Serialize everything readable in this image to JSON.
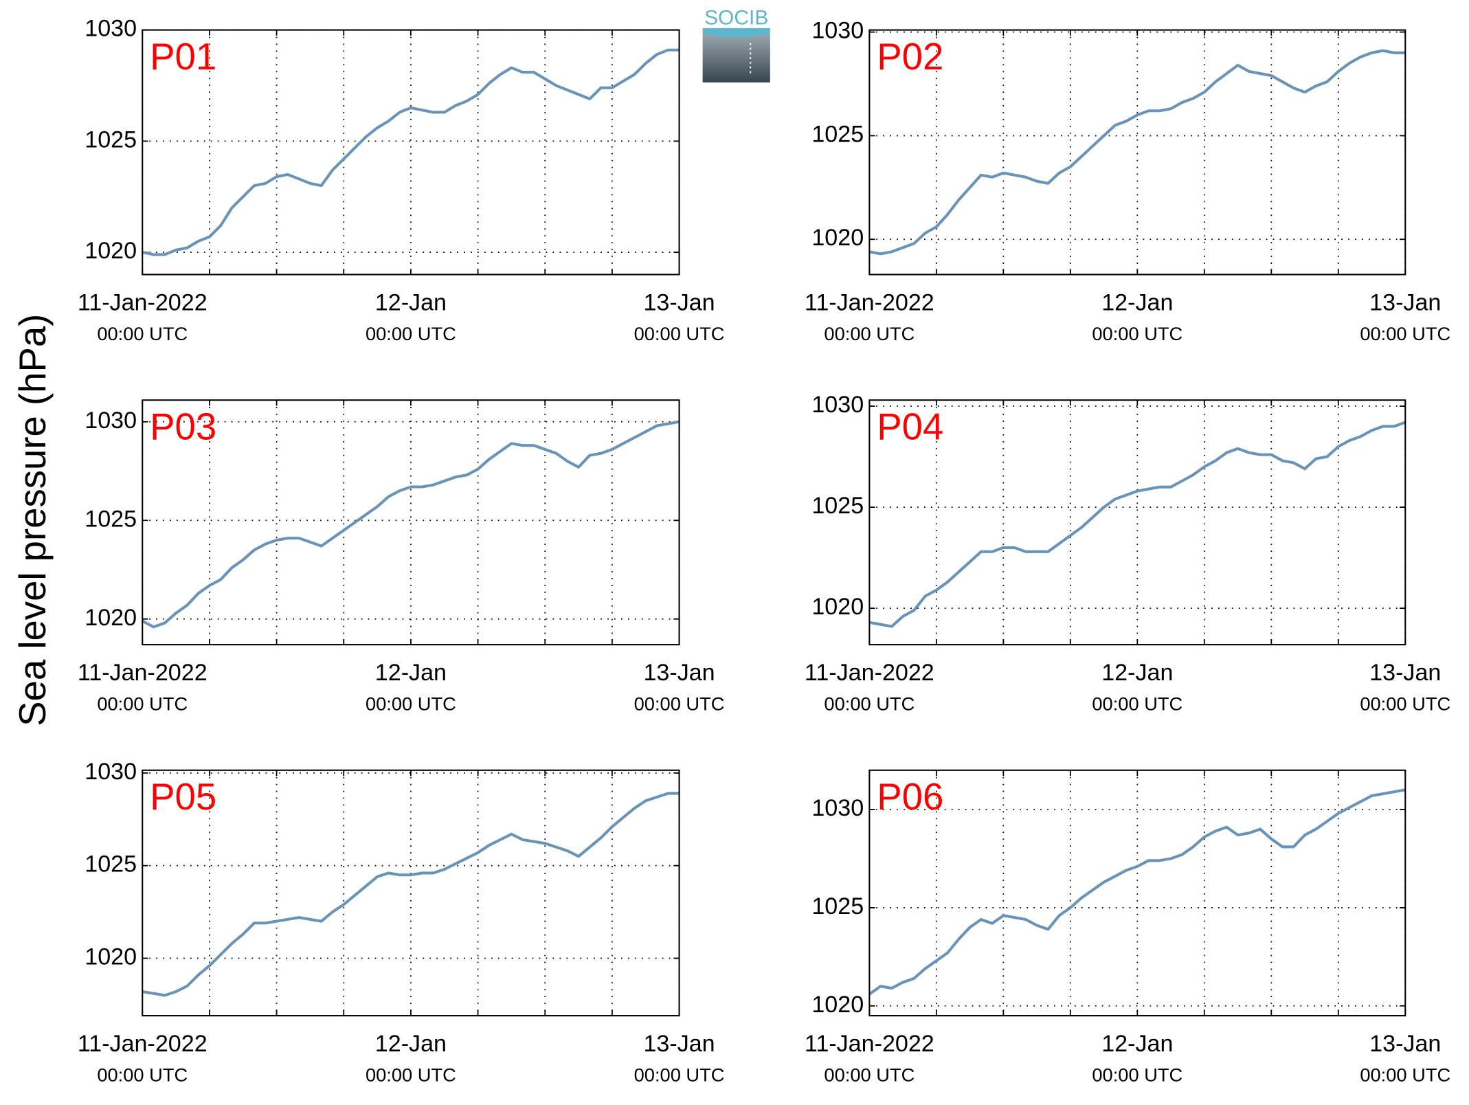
{
  "ylabel": "Sea level pressure (hPa)",
  "logo": "SOCIB",
  "chart_data": [
    {
      "type": "line",
      "title": "P01",
      "color": "#6a93b8",
      "grid": true,
      "x": [
        0,
        1,
        2,
        3,
        4,
        5,
        6,
        7,
        8,
        9,
        10,
        11,
        12,
        13,
        14,
        15,
        16,
        17,
        18,
        19,
        20,
        21,
        22,
        23,
        24,
        25,
        26,
        27,
        28,
        29,
        30,
        31,
        32,
        33,
        34,
        35,
        36,
        37,
        38,
        39,
        40,
        41,
        42,
        43,
        44,
        45,
        46,
        47,
        48
      ],
      "values": [
        1020.0,
        1019.9,
        1019.9,
        1020.1,
        1020.2,
        1020.5,
        1020.7,
        1021.2,
        1022.0,
        1022.5,
        1023.0,
        1023.1,
        1023.4,
        1023.5,
        1023.3,
        1023.1,
        1023.0,
        1023.7,
        1024.2,
        1024.7,
        1025.2,
        1025.6,
        1025.9,
        1026.3,
        1026.5,
        1026.4,
        1026.3,
        1026.3,
        1026.6,
        1026.8,
        1027.1,
        1027.6,
        1028.0,
        1028.3,
        1028.1,
        1028.1,
        1027.8,
        1027.5,
        1027.3,
        1027.1,
        1026.9,
        1027.4,
        1027.4,
        1027.7,
        1028.0,
        1028.5,
        1028.9,
        1029.1,
        1029.1
      ],
      "xlim": [
        0,
        48
      ],
      "ylim": [
        1019,
        1030
      ],
      "yticks": [
        1020,
        1025,
        1030
      ],
      "xticks": [
        {
          "value": 0,
          "label": "11-Jan-2022",
          "sublabel": "00:00 UTC"
        },
        {
          "value": 6,
          "label": null
        },
        {
          "value": 12,
          "label": null
        },
        {
          "value": 18,
          "label": null
        },
        {
          "value": 24,
          "label": "12-Jan",
          "sublabel": "00:00 UTC"
        },
        {
          "value": 30,
          "label": null
        },
        {
          "value": 36,
          "label": null
        },
        {
          "value": 42,
          "label": null
        },
        {
          "value": 48,
          "label": "13-Jan",
          "sublabel": "00:00 UTC"
        }
      ]
    },
    {
      "type": "line",
      "title": "P02",
      "color": "#6a93b8",
      "grid": true,
      "x": [
        0,
        1,
        2,
        3,
        4,
        5,
        6,
        7,
        8,
        9,
        10,
        11,
        12,
        13,
        14,
        15,
        16,
        17,
        18,
        19,
        20,
        21,
        22,
        23,
        24,
        25,
        26,
        27,
        28,
        29,
        30,
        31,
        32,
        33,
        34,
        35,
        36,
        37,
        38,
        39,
        40,
        41,
        42,
        43,
        44,
        45,
        46,
        47,
        48
      ],
      "values": [
        1019.4,
        1019.3,
        1019.4,
        1019.6,
        1019.8,
        1020.3,
        1020.6,
        1021.2,
        1021.9,
        1022.5,
        1023.1,
        1023.0,
        1023.2,
        1023.1,
        1023.0,
        1022.8,
        1022.7,
        1023.2,
        1023.5,
        1024.0,
        1024.5,
        1025.0,
        1025.5,
        1025.7,
        1026.0,
        1026.2,
        1026.2,
        1026.3,
        1026.6,
        1026.8,
        1027.1,
        1027.6,
        1028.0,
        1028.4,
        1028.1,
        1028.0,
        1027.9,
        1027.6,
        1027.3,
        1027.1,
        1027.4,
        1027.6,
        1028.1,
        1028.5,
        1028.8,
        1029.0,
        1029.1,
        1029.0,
        1029.0
      ],
      "xlim": [
        0,
        48
      ],
      "ylim": [
        1018.3,
        1030.1
      ],
      "yticks": [
        1020,
        1025,
        1030
      ],
      "xticks": [
        {
          "value": 0,
          "label": "11-Jan-2022",
          "sublabel": "00:00 UTC"
        },
        {
          "value": 6,
          "label": null
        },
        {
          "value": 12,
          "label": null
        },
        {
          "value": 18,
          "label": null
        },
        {
          "value": 24,
          "label": "12-Jan",
          "sublabel": "00:00 UTC"
        },
        {
          "value": 30,
          "label": null
        },
        {
          "value": 36,
          "label": null
        },
        {
          "value": 42,
          "label": null
        },
        {
          "value": 48,
          "label": "13-Jan",
          "sublabel": "00:00 UTC"
        }
      ]
    },
    {
      "type": "line",
      "title": "P03",
      "color": "#6a93b8",
      "grid": true,
      "x": [
        0,
        1,
        2,
        3,
        4,
        5,
        6,
        7,
        8,
        9,
        10,
        11,
        12,
        13,
        14,
        15,
        16,
        17,
        18,
        19,
        20,
        21,
        22,
        23,
        24,
        25,
        26,
        27,
        28,
        29,
        30,
        31,
        32,
        33,
        34,
        35,
        36,
        37,
        38,
        39,
        40,
        41,
        42,
        43,
        44,
        45,
        46,
        47,
        48
      ],
      "values": [
        1019.9,
        1019.6,
        1019.8,
        1020.3,
        1020.7,
        1021.3,
        1021.7,
        1022.0,
        1022.6,
        1023.0,
        1023.5,
        1023.8,
        1024.0,
        1024.1,
        1024.1,
        1023.9,
        1023.7,
        1024.1,
        1024.5,
        1024.9,
        1025.3,
        1025.7,
        1026.2,
        1026.5,
        1026.7,
        1026.7,
        1026.8,
        1027.0,
        1027.2,
        1027.3,
        1027.6,
        1028.1,
        1028.5,
        1028.9,
        1028.8,
        1028.8,
        1028.6,
        1028.4,
        1028.0,
        1027.7,
        1028.3,
        1028.4,
        1028.6,
        1028.9,
        1029.2,
        1029.5,
        1029.8,
        1029.9,
        1030.0
      ],
      "xlim": [
        0,
        48
      ],
      "ylim": [
        1018.7,
        1031.1
      ],
      "yticks": [
        1020,
        1025,
        1030
      ],
      "xticks": [
        {
          "value": 0,
          "label": "11-Jan-2022",
          "sublabel": "00:00 UTC"
        },
        {
          "value": 6,
          "label": null
        },
        {
          "value": 12,
          "label": null
        },
        {
          "value": 18,
          "label": null
        },
        {
          "value": 24,
          "label": "12-Jan",
          "sublabel": "00:00 UTC"
        },
        {
          "value": 30,
          "label": null
        },
        {
          "value": 36,
          "label": null
        },
        {
          "value": 42,
          "label": null
        },
        {
          "value": 48,
          "label": "13-Jan",
          "sublabel": "00:00 UTC"
        }
      ]
    },
    {
      "type": "line",
      "title": "P04",
      "color": "#6a93b8",
      "grid": true,
      "x": [
        0,
        1,
        2,
        3,
        4,
        5,
        6,
        7,
        8,
        9,
        10,
        11,
        12,
        13,
        14,
        15,
        16,
        17,
        18,
        19,
        20,
        21,
        22,
        23,
        24,
        25,
        26,
        27,
        28,
        29,
        30,
        31,
        32,
        33,
        34,
        35,
        36,
        37,
        38,
        39,
        40,
        41,
        42,
        43,
        44,
        45,
        46,
        47,
        48
      ],
      "values": [
        1019.3,
        1019.2,
        1019.1,
        1019.6,
        1019.9,
        1020.6,
        1020.9,
        1021.3,
        1021.8,
        1022.3,
        1022.8,
        1022.8,
        1023.0,
        1023.0,
        1022.8,
        1022.8,
        1022.8,
        1023.2,
        1023.6,
        1024.0,
        1024.5,
        1025.0,
        1025.4,
        1025.6,
        1025.8,
        1025.9,
        1026.0,
        1026.0,
        1026.3,
        1026.6,
        1027.0,
        1027.3,
        1027.7,
        1027.9,
        1027.7,
        1027.6,
        1027.6,
        1027.3,
        1027.2,
        1026.9,
        1027.4,
        1027.5,
        1028.0,
        1028.3,
        1028.5,
        1028.8,
        1029.0,
        1029.0,
        1029.2
      ],
      "xlim": [
        0,
        48
      ],
      "ylim": [
        1018.2,
        1030.3
      ],
      "yticks": [
        1020,
        1025,
        1030
      ],
      "xticks": [
        {
          "value": 0,
          "label": "11-Jan-2022",
          "sublabel": "00:00 UTC"
        },
        {
          "value": 6,
          "label": null
        },
        {
          "value": 12,
          "label": null
        },
        {
          "value": 18,
          "label": null
        },
        {
          "value": 24,
          "label": "12-Jan",
          "sublabel": "00:00 UTC"
        },
        {
          "value": 30,
          "label": null
        },
        {
          "value": 36,
          "label": null
        },
        {
          "value": 42,
          "label": null
        },
        {
          "value": 48,
          "label": "13-Jan",
          "sublabel": "00:00 UTC"
        }
      ]
    },
    {
      "type": "line",
      "title": "P05",
      "color": "#6a93b8",
      "grid": true,
      "x": [
        0,
        1,
        2,
        3,
        4,
        5,
        6,
        7,
        8,
        9,
        10,
        11,
        12,
        13,
        14,
        15,
        16,
        17,
        18,
        19,
        20,
        21,
        22,
        23,
        24,
        25,
        26,
        27,
        28,
        29,
        30,
        31,
        32,
        33,
        34,
        35,
        36,
        37,
        38,
        39,
        40,
        41,
        42,
        43,
        44,
        45,
        46,
        47,
        48
      ],
      "values": [
        1018.2,
        1018.1,
        1018.0,
        1018.2,
        1018.5,
        1019.1,
        1019.6,
        1020.2,
        1020.8,
        1021.3,
        1021.9,
        1021.9,
        1022.0,
        1022.1,
        1022.2,
        1022.1,
        1022.0,
        1022.5,
        1022.9,
        1023.4,
        1023.9,
        1024.4,
        1024.6,
        1024.5,
        1024.5,
        1024.6,
        1024.6,
        1024.8,
        1025.1,
        1025.4,
        1025.7,
        1026.1,
        1026.4,
        1026.7,
        1026.4,
        1026.3,
        1026.2,
        1026.0,
        1025.8,
        1025.5,
        1026.0,
        1026.5,
        1027.1,
        1027.6,
        1028.1,
        1028.5,
        1028.7,
        1028.9,
        1028.9
      ],
      "xlim": [
        0,
        48
      ],
      "ylim": [
        1016.9,
        1030.15
      ],
      "yticks": [
        1020,
        1025,
        1030
      ],
      "xticks": [
        {
          "value": 0,
          "label": "11-Jan-2022",
          "sublabel": "00:00 UTC"
        },
        {
          "value": 6,
          "label": null
        },
        {
          "value": 12,
          "label": null
        },
        {
          "value": 18,
          "label": null
        },
        {
          "value": 24,
          "label": "12-Jan",
          "sublabel": "00:00 UTC"
        },
        {
          "value": 30,
          "label": null
        },
        {
          "value": 36,
          "label": null
        },
        {
          "value": 42,
          "label": null
        },
        {
          "value": 48,
          "label": "13-Jan",
          "sublabel": "00:00 UTC"
        }
      ]
    },
    {
      "type": "line",
      "title": "P06",
      "color": "#6a93b8",
      "grid": true,
      "x": [
        0,
        1,
        2,
        3,
        4,
        5,
        6,
        7,
        8,
        9,
        10,
        11,
        12,
        13,
        14,
        15,
        16,
        17,
        18,
        19,
        20,
        21,
        22,
        23,
        24,
        25,
        26,
        27,
        28,
        29,
        30,
        31,
        32,
        33,
        34,
        35,
        36,
        37,
        38,
        39,
        40,
        41,
        42,
        43,
        44,
        45,
        46,
        47,
        48
      ],
      "values": [
        1020.6,
        1021.0,
        1020.9,
        1021.2,
        1021.4,
        1021.9,
        1022.3,
        1022.7,
        1023.4,
        1024.0,
        1024.4,
        1024.2,
        1024.6,
        1024.5,
        1024.4,
        1024.1,
        1023.9,
        1024.6,
        1025.0,
        1025.5,
        1025.9,
        1026.3,
        1026.6,
        1026.9,
        1027.1,
        1027.4,
        1027.4,
        1027.5,
        1027.7,
        1028.1,
        1028.6,
        1028.9,
        1029.1,
        1028.7,
        1028.8,
        1029.0,
        1028.5,
        1028.1,
        1028.1,
        1028.7,
        1029.0,
        1029.4,
        1029.8,
        1030.1,
        1030.4,
        1030.7,
        1030.8,
        1030.9,
        1031.0
      ],
      "xlim": [
        0,
        48
      ],
      "ylim": [
        1019.5,
        1032
      ],
      "yticks": [
        1020,
        1025,
        1030
      ],
      "xticks": [
        {
          "value": 0,
          "label": "11-Jan-2022",
          "sublabel": "00:00 UTC"
        },
        {
          "value": 6,
          "label": null
        },
        {
          "value": 12,
          "label": null
        },
        {
          "value": 18,
          "label": null
        },
        {
          "value": 24,
          "label": "12-Jan",
          "sublabel": "00:00 UTC"
        },
        {
          "value": 30,
          "label": null
        },
        {
          "value": 36,
          "label": null
        },
        {
          "value": 42,
          "label": null
        },
        {
          "value": 48,
          "label": "13-Jan",
          "sublabel": "00:00 UTC"
        }
      ]
    }
  ]
}
